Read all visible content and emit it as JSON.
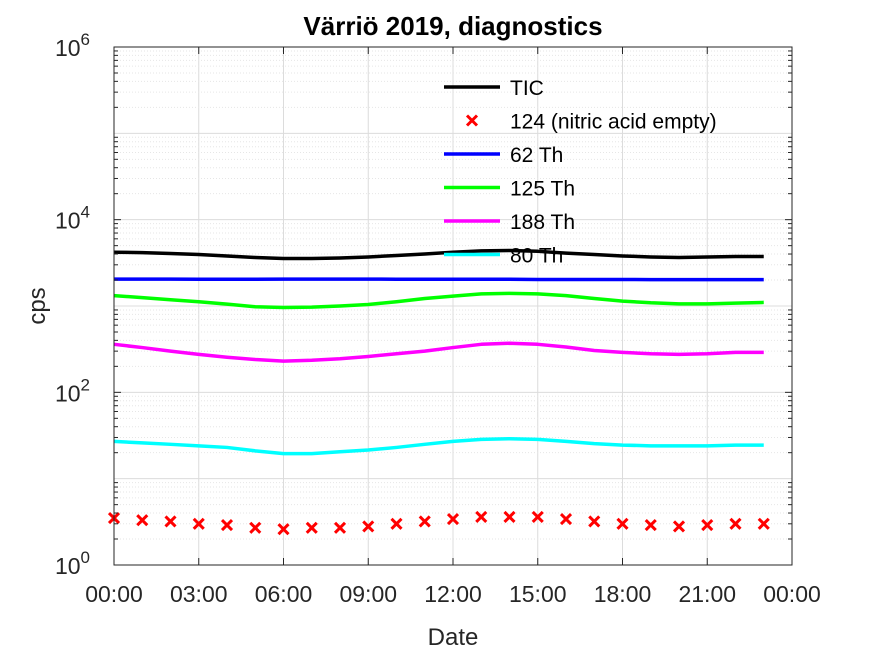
{
  "chart_data": {
    "type": "line",
    "title": "Värriö 2019, diagnostics",
    "xlabel": "Date",
    "ylabel": "cps",
    "x_ticks": [
      "00:00",
      "03:00",
      "06:00",
      "09:00",
      "12:00",
      "15:00",
      "18:00",
      "21:00",
      "00:00"
    ],
    "x_range_hours": [
      0,
      24
    ],
    "y_scale": "log",
    "ylim": [
      1,
      1000000
    ],
    "y_ticks": [
      {
        "base": "10",
        "exp": "0"
      },
      {
        "base": "10",
        "exp": "2"
      },
      {
        "base": "10",
        "exp": "4"
      },
      {
        "base": "10",
        "exp": "6"
      }
    ],
    "grid": true,
    "legend_position": "top-center",
    "x_hours": [
      0,
      1,
      2,
      3,
      4,
      5,
      6,
      7,
      8,
      9,
      10,
      11,
      12,
      13,
      14,
      15,
      16,
      17,
      18,
      19,
      20,
      21,
      22,
      23
    ],
    "series": [
      {
        "name": "TIC",
        "color": "#000000",
        "style": "line",
        "values": [
          4200,
          4150,
          4050,
          3950,
          3800,
          3650,
          3550,
          3550,
          3600,
          3700,
          3850,
          4000,
          4200,
          4350,
          4400,
          4300,
          4100,
          3950,
          3800,
          3700,
          3650,
          3700,
          3750,
          3750
        ]
      },
      {
        "name": "124 (nitric acid empty)",
        "color": "#ff0000",
        "style": "marker-x",
        "values": [
          3.5,
          3.3,
          3.2,
          3.0,
          2.9,
          2.7,
          2.6,
          2.7,
          2.7,
          2.8,
          3.0,
          3.2,
          3.4,
          3.6,
          3.6,
          3.6,
          3.4,
          3.2,
          3.0,
          2.9,
          2.8,
          2.9,
          3.0,
          3.0
        ]
      },
      {
        "name": "62 Th",
        "color": "#0000ff",
        "style": "line",
        "values": [
          2050,
          2050,
          2050,
          2040,
          2040,
          2040,
          2050,
          2050,
          2050,
          2050,
          2040,
          2040,
          2040,
          2040,
          2040,
          2030,
          2030,
          2030,
          2030,
          2020,
          2020,
          2020,
          2020,
          2020
        ]
      },
      {
        "name": "125 Th",
        "color": "#00ff00",
        "style": "line",
        "values": [
          1320,
          1250,
          1180,
          1120,
          1050,
          980,
          960,
          970,
          1000,
          1040,
          1120,
          1220,
          1300,
          1380,
          1400,
          1380,
          1320,
          1220,
          1140,
          1090,
          1060,
          1060,
          1080,
          1100
        ]
      },
      {
        "name": "188 Th",
        "color": "#ff00ff",
        "style": "line",
        "values": [
          360,
          330,
          300,
          275,
          255,
          240,
          230,
          235,
          245,
          260,
          280,
          300,
          330,
          360,
          370,
          360,
          335,
          305,
          290,
          280,
          275,
          280,
          290,
          290
        ]
      },
      {
        "name": "80 Th",
        "color": "#00ffff",
        "style": "line",
        "values": [
          27,
          26,
          25,
          24,
          23,
          21,
          19.5,
          19.5,
          20.5,
          21.5,
          23,
          25,
          27,
          28.5,
          29,
          28.5,
          27,
          25.5,
          24.5,
          24,
          24,
          24,
          24.5,
          24.5
        ]
      }
    ]
  }
}
